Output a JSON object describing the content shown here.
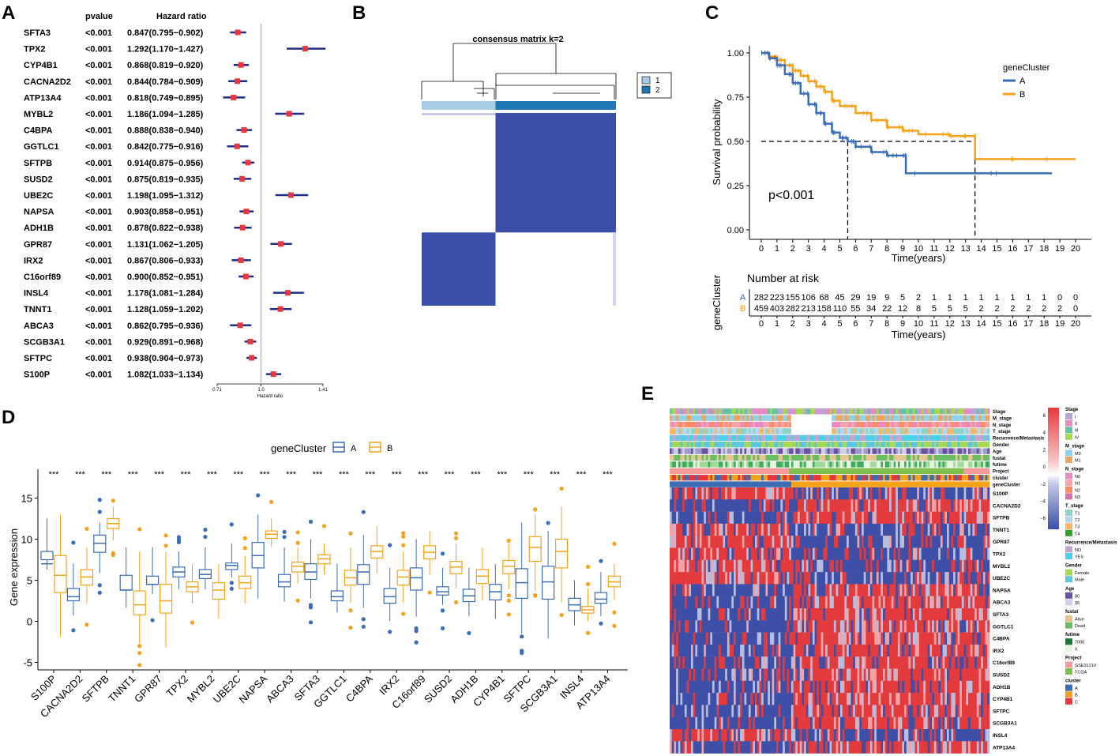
{
  "colors": {
    "A": "#3a6db5",
    "B": "#f5a21b",
    "hr_point": "#e8363c",
    "hr_line": "#1f2d86",
    "heat_blue": "#3a4ea8",
    "heat_red": "#e8383d"
  },
  "panel_labels": {
    "a": "A",
    "b": "B",
    "c": "C",
    "d": "D",
    "e": "E"
  },
  "forest": {
    "header_pvalue": "pvalue",
    "header_hr": "Hazard ratio",
    "xlabel": "Hazard ratio",
    "xmin": 0.71,
    "xmax": 1.41,
    "tick_labels": [
      "0.71",
      "1.0",
      "1.41"
    ],
    "ref_line": 1.0,
    "rows": [
      {
        "gene": "SFTA3",
        "p": "<0.001",
        "hr_text": "0.847(0.795−0.902)",
        "hr": 0.847,
        "lo": 0.795,
        "hi": 0.902
      },
      {
        "gene": "TPX2",
        "p": "<0.001",
        "hr_text": "1.292(1.170−1.427)",
        "hr": 1.292,
        "lo": 1.17,
        "hi": 1.427
      },
      {
        "gene": "CYP4B1",
        "p": "<0.001",
        "hr_text": "0.868(0.819−0.920)",
        "hr": 0.868,
        "lo": 0.819,
        "hi": 0.92
      },
      {
        "gene": "CACNA2D2",
        "p": "<0.001",
        "hr_text": "0.844(0.784−0.909)",
        "hr": 0.844,
        "lo": 0.784,
        "hi": 0.909
      },
      {
        "gene": "ATP13A4",
        "p": "<0.001",
        "hr_text": "0.818(0.749−0.895)",
        "hr": 0.818,
        "lo": 0.749,
        "hi": 0.895
      },
      {
        "gene": "MYBL2",
        "p": "<0.001",
        "hr_text": "1.186(1.094−1.285)",
        "hr": 1.186,
        "lo": 1.094,
        "hi": 1.285
      },
      {
        "gene": "C4BPA",
        "p": "<0.001",
        "hr_text": "0.888(0.838−0.940)",
        "hr": 0.888,
        "lo": 0.838,
        "hi": 0.94
      },
      {
        "gene": "GGTLC1",
        "p": "<0.001",
        "hr_text": "0.842(0.775−0.916)",
        "hr": 0.842,
        "lo": 0.775,
        "hi": 0.916
      },
      {
        "gene": "SFTPB",
        "p": "<0.001",
        "hr_text": "0.914(0.875−0.956)",
        "hr": 0.914,
        "lo": 0.875,
        "hi": 0.956
      },
      {
        "gene": "SUSD2",
        "p": "<0.001",
        "hr_text": "0.875(0.819−0.935)",
        "hr": 0.875,
        "lo": 0.819,
        "hi": 0.935
      },
      {
        "gene": "UBE2C",
        "p": "<0.001",
        "hr_text": "1.198(1.095−1.312)",
        "hr": 1.198,
        "lo": 1.095,
        "hi": 1.312
      },
      {
        "gene": "NAPSA",
        "p": "<0.001",
        "hr_text": "0.903(0.858−0.951)",
        "hr": 0.903,
        "lo": 0.858,
        "hi": 0.951
      },
      {
        "gene": "ADH1B",
        "p": "<0.001",
        "hr_text": "0.878(0.822−0.938)",
        "hr": 0.878,
        "lo": 0.822,
        "hi": 0.938
      },
      {
        "gene": "GPR87",
        "p": "<0.001",
        "hr_text": "1.131(1.062−1.205)",
        "hr": 1.131,
        "lo": 1.062,
        "hi": 1.205
      },
      {
        "gene": "IRX2",
        "p": "<0.001",
        "hr_text": "0.867(0.806−0.933)",
        "hr": 0.867,
        "lo": 0.806,
        "hi": 0.933
      },
      {
        "gene": "C16orf89",
        "p": "<0.001",
        "hr_text": "0.900(0.852−0.951)",
        "hr": 0.9,
        "lo": 0.852,
        "hi": 0.951
      },
      {
        "gene": "INSL4",
        "p": "<0.001",
        "hr_text": "1.178(1.081−1.284)",
        "hr": 1.178,
        "lo": 1.081,
        "hi": 1.284
      },
      {
        "gene": "TNNT1",
        "p": "<0.001",
        "hr_text": "1.128(1.059−1.202)",
        "hr": 1.128,
        "lo": 1.059,
        "hi": 1.202
      },
      {
        "gene": "ABCA3",
        "p": "<0.001",
        "hr_text": "0.862(0.795−0.936)",
        "hr": 0.862,
        "lo": 0.795,
        "hi": 0.936
      },
      {
        "gene": "SCGB3A1",
        "p": "<0.001",
        "hr_text": "0.929(0.891−0.968)",
        "hr": 0.929,
        "lo": 0.891,
        "hi": 0.968
      },
      {
        "gene": "SFTPC",
        "p": "<0.001",
        "hr_text": "0.938(0.904−0.973)",
        "hr": 0.938,
        "lo": 0.904,
        "hi": 0.973
      },
      {
        "gene": "S100P",
        "p": "<0.001",
        "hr_text": "1.082(1.033−1.134)",
        "hr": 1.082,
        "lo": 1.033,
        "hi": 1.134
      }
    ]
  },
  "consensus": {
    "title": "consensus matrix k=2",
    "legend": [
      "1",
      "2"
    ],
    "colors": [
      "#a6cde3",
      "#1f78b4"
    ],
    "cluster_fraction": 0.62
  },
  "survival": {
    "ylabel": "Survival probability",
    "xlabel": "Time(years)",
    "legend_title": "geneCluster",
    "groups": [
      "A",
      "B"
    ],
    "pvalue": "p<0.001",
    "y_ticks": [
      "0.00",
      "0.25",
      "0.50",
      "0.75",
      "1.00"
    ],
    "x_ticks": [
      "0",
      "1",
      "2",
      "3",
      "4",
      "5",
      "6",
      "7",
      "8",
      "9",
      "10",
      "11",
      "12",
      "13",
      "14",
      "15",
      "16",
      "17",
      "18",
      "19",
      "20"
    ],
    "median_A": 5.5,
    "median_B": 13.6,
    "curve_A": [
      [
        0,
        1.0
      ],
      [
        0.5,
        0.97
      ],
      [
        1,
        0.93
      ],
      [
        1.5,
        0.88
      ],
      [
        2,
        0.83
      ],
      [
        2.5,
        0.77
      ],
      [
        3,
        0.71
      ],
      [
        3.5,
        0.66
      ],
      [
        4,
        0.6
      ],
      [
        4.5,
        0.55
      ],
      [
        5,
        0.52
      ],
      [
        5.5,
        0.5
      ],
      [
        6,
        0.47
      ],
      [
        7,
        0.44
      ],
      [
        8,
        0.42
      ],
      [
        9,
        0.42
      ],
      [
        9.2,
        0.32
      ],
      [
        18.5,
        0.32
      ]
    ],
    "curve_B": [
      [
        0,
        1.0
      ],
      [
        0.5,
        0.98
      ],
      [
        1,
        0.96
      ],
      [
        1.5,
        0.93
      ],
      [
        2,
        0.9
      ],
      [
        2.5,
        0.87
      ],
      [
        3,
        0.84
      ],
      [
        3.5,
        0.81
      ],
      [
        4,
        0.78
      ],
      [
        4.5,
        0.73
      ],
      [
        5,
        0.7
      ],
      [
        6,
        0.66
      ],
      [
        7,
        0.62
      ],
      [
        8,
        0.58
      ],
      [
        9,
        0.56
      ],
      [
        10,
        0.54
      ],
      [
        12,
        0.53
      ],
      [
        13.6,
        0.53
      ],
      [
        13.6,
        0.4
      ],
      [
        20,
        0.4
      ]
    ],
    "risk_title": "Number at risk",
    "risk_axis_label": "geneCluster",
    "risk_A": [
      "282",
      "223",
      "155",
      "106",
      "68",
      "45",
      "29",
      "19",
      "9",
      "5",
      "2",
      "1",
      "1",
      "1",
      "1",
      "1",
      "1",
      "1",
      "1",
      "0",
      "0"
    ],
    "risk_B": [
      "459",
      "403",
      "282",
      "213",
      "158",
      "110",
      "55",
      "34",
      "22",
      "12",
      "8",
      "5",
      "5",
      "5",
      "2",
      "2",
      "2",
      "2",
      "2",
      "2",
      "0"
    ]
  },
  "boxplot": {
    "legend_title": "geneCluster",
    "legend": [
      "A",
      "B"
    ],
    "ylabel": "Gene expression",
    "sig_label": "***",
    "y_ticks": [
      "-5",
      "0",
      "5",
      "10",
      "15"
    ],
    "genes": [
      "S100P",
      "CACNA2D2",
      "SFTPB",
      "TNNT1",
      "GPR87",
      "TPX2",
      "MYBL2",
      "UBE2C",
      "NAPSA",
      "ABCA3",
      "SFTA3",
      "GGTLC1",
      "C4BPA",
      "IRX2",
      "C16orf89",
      "SUSD2",
      "ADH1B",
      "CYP4B1",
      "SFTPC",
      "SCGB3A1",
      "INSL4",
      "ATP13A4"
    ],
    "A": [
      [
        7,
        8.5,
        12.5,
        9.5,
        7.5
      ],
      [
        3,
        4,
        7,
        3.1,
        2.5
      ],
      [
        9.5,
        10.5,
        12,
        9.2,
        8.4
      ],
      [
        3.8,
        5.6,
        9,
        3.9,
        3.8
      ],
      [
        4.5,
        5.5,
        9,
        4.4,
        4.5
      ],
      [
        6,
        6.6,
        8.5,
        6,
        5.4
      ],
      [
        5.7,
        6.3,
        9,
        5.8,
        5.2
      ],
      [
        6.8,
        7.1,
        9.5,
        6.8,
        6.3
      ],
      [
        8,
        9.6,
        13,
        8,
        6.5
      ],
      [
        4.8,
        5.7,
        9,
        4.9,
        4.2
      ],
      [
        6,
        7,
        10,
        6,
        5.1
      ],
      [
        3,
        3.7,
        7,
        3.1,
        2.5
      ],
      [
        6,
        6.9,
        10.5,
        6.2,
        4.5
      ],
      [
        3,
        4,
        6.5,
        3.2,
        2.2
      ],
      [
        5.3,
        6.5,
        10,
        5.6,
        3.8
      ],
      [
        3.6,
        4.2,
        6.5,
        3.7,
        3.2
      ],
      [
        3.1,
        3.9,
        6.5,
        3.3,
        2.4
      ],
      [
        3.6,
        4.5,
        7,
        3.6,
        2.6
      ],
      [
        4.7,
        6.4,
        12,
        2.9,
        2.8
      ],
      [
        4.8,
        6.7,
        11,
        4.9,
        2.7
      ],
      [
        2,
        2.8,
        5,
        2.1,
        1.3
      ],
      [
        2.7,
        3.5,
        6,
        3,
        2.2
      ]
    ],
    "B": [
      [
        5.6,
        8,
        13,
        5.8,
        3.5
      ],
      [
        5.4,
        6.3,
        9,
        5.5,
        4.4
      ],
      [
        11.9,
        12.5,
        14,
        11.9,
        11.3
      ],
      [
        2,
        3.7,
        8.5,
        2.1,
        0.8
      ],
      [
        2.5,
        4.5,
        8.5,
        2.6,
        1
      ],
      [
        4.2,
        4.8,
        7,
        4.3,
        3.6
      ],
      [
        3.8,
        4.7,
        7,
        3.8,
        2.7
      ],
      [
        4.7,
        5.5,
        8,
        4.9,
        4
      ],
      [
        10.6,
        11,
        12.5,
        10.6,
        10.1
      ],
      [
        6.7,
        7.2,
        9,
        6.6,
        6
      ],
      [
        7.6,
        8.1,
        9.5,
        7.6,
        7
      ],
      [
        5.3,
        6.2,
        9,
        5.3,
        4.4
      ],
      [
        8.5,
        9.2,
        11.5,
        8.5,
        7.7
      ],
      [
        5.4,
        6.2,
        8.5,
        5.4,
        4.4
      ],
      [
        8.4,
        9.2,
        11,
        8.5,
        7.6
      ],
      [
        6.6,
        7.3,
        9.5,
        6.6,
        5.8
      ],
      [
        5.5,
        6.3,
        9,
        5.6,
        4.6
      ],
      [
        6.7,
        7.4,
        9.5,
        6.6,
        5.8
      ],
      [
        9,
        10.3,
        13,
        9.1,
        7.3
      ],
      [
        8.5,
        10,
        14,
        8.7,
        6.5
      ],
      [
        1.4,
        1.8,
        4,
        1.4,
        1
      ],
      [
        4.8,
        5.5,
        7,
        4.8,
        4.2
      ]
    ],
    "ymin": -5.5,
    "ymax": 18
  },
  "heatmap": {
    "annotation_rows": [
      "Stage",
      "M_stage",
      "N_stage",
      "T_stage",
      "Recurrence/Metastasis",
      "Gender",
      "Age",
      "fustat",
      "futime",
      "Project",
      "cluster",
      "geneCluster"
    ],
    "genes": [
      "S100P",
      "CACNA2D2",
      "SFTPB",
      "TNNT1",
      "GPR87",
      "TPX2",
      "MYBL2",
      "UBE2C",
      "NAPSA",
      "ABCA3",
      "SFTA3",
      "GGTLC1",
      "C4BPA",
      "IRX2",
      "C16orf89",
      "SUSD2",
      "ADH1B",
      "CYP4B1",
      "SFTPC",
      "SCGB3A1",
      "INSL4",
      "ATP13A4"
    ],
    "gene_pattern": [
      "up",
      "down",
      "down",
      "up",
      "up",
      "up",
      "up",
      "up",
      "down",
      "down",
      "down",
      "down",
      "down",
      "down",
      "down",
      "down",
      "down",
      "down",
      "down",
      "down",
      "up",
      "down"
    ],
    "scale_labels": [
      "6",
      "4",
      "2",
      "0",
      "−2",
      "−4",
      "−6"
    ],
    "legend": [
      {
        "title": "Stage",
        "items": [
          {
            "label": "I",
            "color": "#b7a4d9"
          },
          {
            "label": "II",
            "color": "#e78ac3"
          },
          {
            "label": "III",
            "color": "#66c2a5"
          },
          {
            "label": "IV",
            "color": "#a6d854"
          }
        ]
      },
      {
        "title": "M_stage",
        "items": [
          {
            "label": "M0",
            "color": "#8fd3e8"
          },
          {
            "label": "M1",
            "color": "#f0a35e"
          }
        ]
      },
      {
        "title": "N_stage",
        "items": [
          {
            "label": "N0",
            "color": "#e78ac3"
          },
          {
            "label": "N1",
            "color": "#f4a3a8"
          },
          {
            "label": "N2",
            "color": "#fc8d62"
          },
          {
            "label": "N3",
            "color": "#d96fb0"
          }
        ]
      },
      {
        "title": "T_stage",
        "items": [
          {
            "label": "T1",
            "color": "#8dd3c7"
          },
          {
            "label": "T2",
            "color": "#b5d6f0"
          },
          {
            "label": "T3",
            "color": "#fdb462"
          },
          {
            "label": "T4",
            "color": "#33a02c"
          }
        ]
      },
      {
        "title": "Recurrence/Metastasis",
        "items": [
          {
            "label": "NO",
            "color": "#c2a5cf"
          },
          {
            "label": "YES",
            "color": "#48d1e8"
          }
        ]
      },
      {
        "title": "Gender",
        "items": [
          {
            "label": "Female",
            "color": "#a6d854"
          },
          {
            "label": "Male",
            "color": "#5bc7e0"
          }
        ]
      },
      {
        "title": "Age",
        "items": [
          {
            "label": "80",
            "color": "#6a51a3"
          },
          {
            "label": "30",
            "color": "#d0d1e6"
          }
        ]
      },
      {
        "title": "fustat",
        "items": [
          {
            "label": "Alive",
            "color": "#e5c494"
          },
          {
            "label": "Dead",
            "color": "#66bd63"
          }
        ]
      },
      {
        "title": "futime",
        "items": [
          {
            "label": "7000",
            "color": "#1b7837"
          },
          {
            "label": "0",
            "color": "#e5f5e0"
          }
        ]
      },
      {
        "title": "Project",
        "items": [
          {
            "label": "GSE31210",
            "color": "#f49a9a"
          },
          {
            "label": "TCGA",
            "color": "#7fbf4e"
          }
        ]
      },
      {
        "title": "cluster",
        "items": [
          {
            "label": "A",
            "color": "#3a6db5"
          },
          {
            "label": "B",
            "color": "#f5a21b"
          },
          {
            "label": "C",
            "color": "#e8363c"
          }
        ]
      }
    ]
  }
}
